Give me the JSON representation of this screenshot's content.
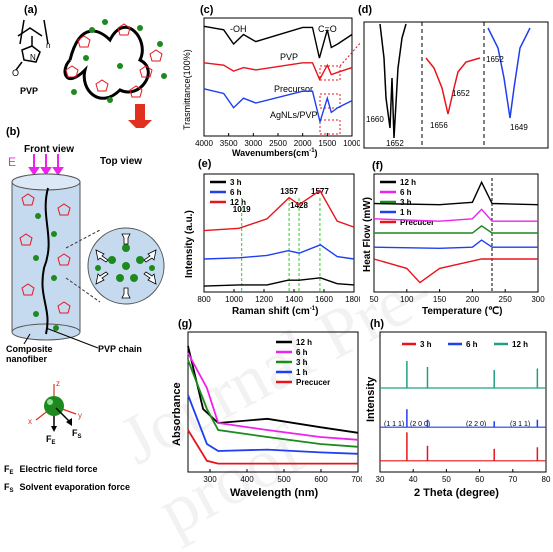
{
  "panels": {
    "a": {
      "label": "(a)",
      "pvp_label": "PVP",
      "subscript_n": "n"
    },
    "b": {
      "label": "(b)",
      "front_view": "Front view",
      "top_view": "Top view",
      "E": "E",
      "composite": "Composite\nnanofiber",
      "pvp_chain": "PVP chain",
      "axis_z": "z",
      "axis_x": "x",
      "axis_y": "y",
      "FE": "F",
      "FE_sub": "E",
      "FS": "F",
      "FS_sub": "S",
      "legend_fe": "Electric field force",
      "legend_fs": "Solvent evaporation force"
    },
    "c": {
      "label": "(c)",
      "ylabel": "Trasmittance(100%)",
      "xlabel": "Wavenumbers(cm",
      "xlabel_sup": "-1",
      "xlabel_end": ")",
      "oh": "-OH",
      "co": "C=O",
      "ticks": [
        "4000",
        "3500",
        "3000",
        "2500",
        "2000",
        "1500",
        "1000"
      ],
      "series_labels": [
        "PVP",
        "Precursor",
        "AgNLs/PVP"
      ]
    },
    "d": {
      "label": "(d)",
      "peaks": [
        "1660",
        "1652",
        "1656",
        "1652",
        "1652",
        "1649"
      ]
    },
    "e": {
      "label": "(e)",
      "ylabel": "Intensity (a.u.)",
      "xlabel": "Raman shift (cm",
      "xlabel_sup": "-1",
      "xlabel_end": ")",
      "ticks": [
        "800",
        "1000",
        "1200",
        "1400",
        "1600",
        "1800"
      ],
      "peaks": [
        "1019",
        "1357",
        "1428",
        "1577"
      ],
      "legend": [
        "3 h",
        "6 h",
        "12 h"
      ]
    },
    "f": {
      "label": "(f)",
      "ylabel": "Heat Flow (mW)",
      "xlabel": "Temperature (℃)",
      "ticks": [
        "50",
        "100",
        "150",
        "200",
        "250",
        "300"
      ],
      "legend": [
        "12 h",
        "6 h",
        "3 h",
        "1 h",
        "Precucer"
      ]
    },
    "g": {
      "label": "(g)",
      "ylabel": "Absorbance",
      "xlabel": "Wavelength (nm)",
      "ticks": [
        "300",
        "400",
        "500",
        "600",
        "700"
      ],
      "legend": [
        "12 h",
        "6 h",
        "3 h",
        "1 h",
        "Precucer"
      ]
    },
    "h": {
      "label": "(h)",
      "ylabel": "Intensity",
      "xlabel": "2 Theta (degree)",
      "ticks": [
        "30",
        "40",
        "50",
        "60",
        "70",
        "80"
      ],
      "legend": [
        "3 h",
        "6 h",
        "12 h"
      ],
      "hkl": [
        "(1 1 1)",
        "(2 0 0)",
        "(2 2 0)",
        "(3 1 1)"
      ]
    }
  },
  "colors": {
    "black": "#000000",
    "red": "#e8141c",
    "blue": "#1f3ff0",
    "magenta": "#ee22ee",
    "green": "#1c8a1c",
    "teal": "#20a080",
    "dashgreen": "#2ecc2e",
    "arrow": "#e0301e"
  },
  "chart_data": [
    {
      "panel": "c",
      "type": "line",
      "title": "",
      "xlabel": "Wavenumbers(cm-1)",
      "ylabel": "Trasmittance(100%)",
      "xlim": [
        4000,
        1000
      ],
      "series": [
        {
          "name": "PVP",
          "x": [
            4000,
            3600,
            3400,
            3200,
            2950,
            2000,
            1800,
            1660,
            1500,
            1420,
            1290,
            1000
          ],
          "y": [
            0.93,
            0.9,
            0.78,
            0.86,
            0.8,
            0.92,
            0.92,
            0.66,
            0.9,
            0.75,
            0.78,
            0.86
          ]
        },
        {
          "name": "Precursor",
          "x": [
            4000,
            3600,
            3400,
            3200,
            2950,
            2000,
            1800,
            1656,
            1500,
            1420,
            1290,
            1000
          ],
          "y": [
            0.62,
            0.6,
            0.55,
            0.58,
            0.56,
            0.62,
            0.62,
            0.48,
            0.6,
            0.52,
            0.54,
            0.58
          ]
        },
        {
          "name": "AgNLs/PVP",
          "x": [
            4000,
            3600,
            3400,
            3200,
            2950,
            2000,
            1800,
            1649,
            1500,
            1420,
            1290,
            1000
          ],
          "y": [
            0.4,
            0.36,
            0.24,
            0.32,
            0.28,
            0.38,
            0.38,
            0.12,
            0.32,
            0.2,
            0.24,
            0.3
          ]
        }
      ]
    },
    {
      "panel": "e",
      "type": "line",
      "xlabel": "Raman shift (cm-1)",
      "ylabel": "Intensity (a.u.)",
      "xlim": [
        750,
        1820
      ],
      "series": [
        {
          "name": "3 h",
          "x": [
            750,
            1000,
            1200,
            1350,
            1430,
            1580,
            1700,
            1820
          ],
          "y": [
            0.05,
            0.06,
            0.06,
            0.1,
            0.1,
            0.12,
            0.07,
            0.06
          ]
        },
        {
          "name": "6 h",
          "x": [
            750,
            1000,
            1200,
            1350,
            1430,
            1580,
            1700,
            1820
          ],
          "y": [
            0.28,
            0.29,
            0.31,
            0.35,
            0.33,
            0.4,
            0.3,
            0.28
          ]
        },
        {
          "name": "12 h",
          "x": [
            750,
            1000,
            1200,
            1357,
            1428,
            1577,
            1700,
            1820
          ],
          "y": [
            0.52,
            0.54,
            0.62,
            0.8,
            0.74,
            0.86,
            0.6,
            0.55
          ]
        }
      ]
    },
    {
      "panel": "f",
      "type": "line",
      "xlabel": "Temperature (℃)",
      "ylabel": "Heat Flow (mW)",
      "xlim": [
        50,
        300
      ],
      "series": [
        {
          "name": "12 h",
          "x": [
            50,
            150,
            200,
            214,
            230,
            300
          ],
          "y": [
            0.75,
            0.74,
            0.76,
            0.93,
            0.75,
            0.74
          ]
        },
        {
          "name": "6 h",
          "x": [
            50,
            150,
            200,
            214,
            230,
            300
          ],
          "y": [
            0.62,
            0.6,
            0.62,
            0.7,
            0.6,
            0.6
          ]
        },
        {
          "name": "3 h",
          "x": [
            50,
            150,
            200,
            214,
            230,
            300
          ],
          "y": [
            0.5,
            0.5,
            0.5,
            0.56,
            0.5,
            0.5
          ]
        },
        {
          "name": "1 h",
          "x": [
            50,
            150,
            200,
            214,
            230,
            300
          ],
          "y": [
            0.38,
            0.37,
            0.38,
            0.44,
            0.38,
            0.38
          ]
        },
        {
          "name": "Precucer",
          "x": [
            50,
            100,
            120,
            150,
            214,
            300
          ],
          "y": [
            0.28,
            0.2,
            0.08,
            0.2,
            0.28,
            0.28
          ]
        }
      ]
    },
    {
      "panel": "g",
      "type": "line",
      "xlabel": "Wavelength (nm)",
      "ylabel": "Absorbance",
      "xlim": [
        250,
        700
      ],
      "series": [
        {
          "name": "12 h",
          "x": [
            250,
            290,
            330,
            460,
            600,
            700
          ],
          "y": [
            0.9,
            0.45,
            0.35,
            0.38,
            0.32,
            0.28
          ]
        },
        {
          "name": "6 h",
          "x": [
            250,
            300,
            330,
            460,
            600,
            700
          ],
          "y": [
            0.85,
            0.6,
            0.35,
            0.3,
            0.25,
            0.23
          ]
        },
        {
          "name": "3 h",
          "x": [
            250,
            300,
            330,
            460,
            600,
            700
          ],
          "y": [
            0.8,
            0.45,
            0.3,
            0.25,
            0.2,
            0.18
          ]
        },
        {
          "name": "1 h",
          "x": [
            250,
            300,
            330,
            460,
            600,
            700
          ],
          "y": [
            0.55,
            0.2,
            0.15,
            0.16,
            0.14,
            0.13
          ]
        },
        {
          "name": "Precucer",
          "x": [
            250,
            300,
            330,
            460,
            600,
            700
          ],
          "y": [
            0.3,
            0.08,
            0.06,
            0.06,
            0.06,
            0.06
          ]
        }
      ]
    },
    {
      "panel": "h",
      "type": "line",
      "xlabel": "2 Theta (degree)",
      "ylabel": "Intensity",
      "xlim": [
        30,
        80
      ],
      "series": [
        {
          "name": "3 h",
          "x": [
            38.1,
            44.3,
            64.4,
            77.4
          ],
          "y": [
            0.95,
            0.5,
            0.4,
            0.45
          ]
        },
        {
          "name": "6 h",
          "x": [
            38.1,
            44.3,
            64.4,
            77.4
          ],
          "y": [
            0.6,
            0.25,
            0.2,
            0.25
          ]
        },
        {
          "name": "12 h",
          "x": [
            38.1,
            44.3,
            64.4,
            77.4
          ],
          "y": [
            0.9,
            0.7,
            0.6,
            0.65
          ]
        }
      ]
    }
  ]
}
